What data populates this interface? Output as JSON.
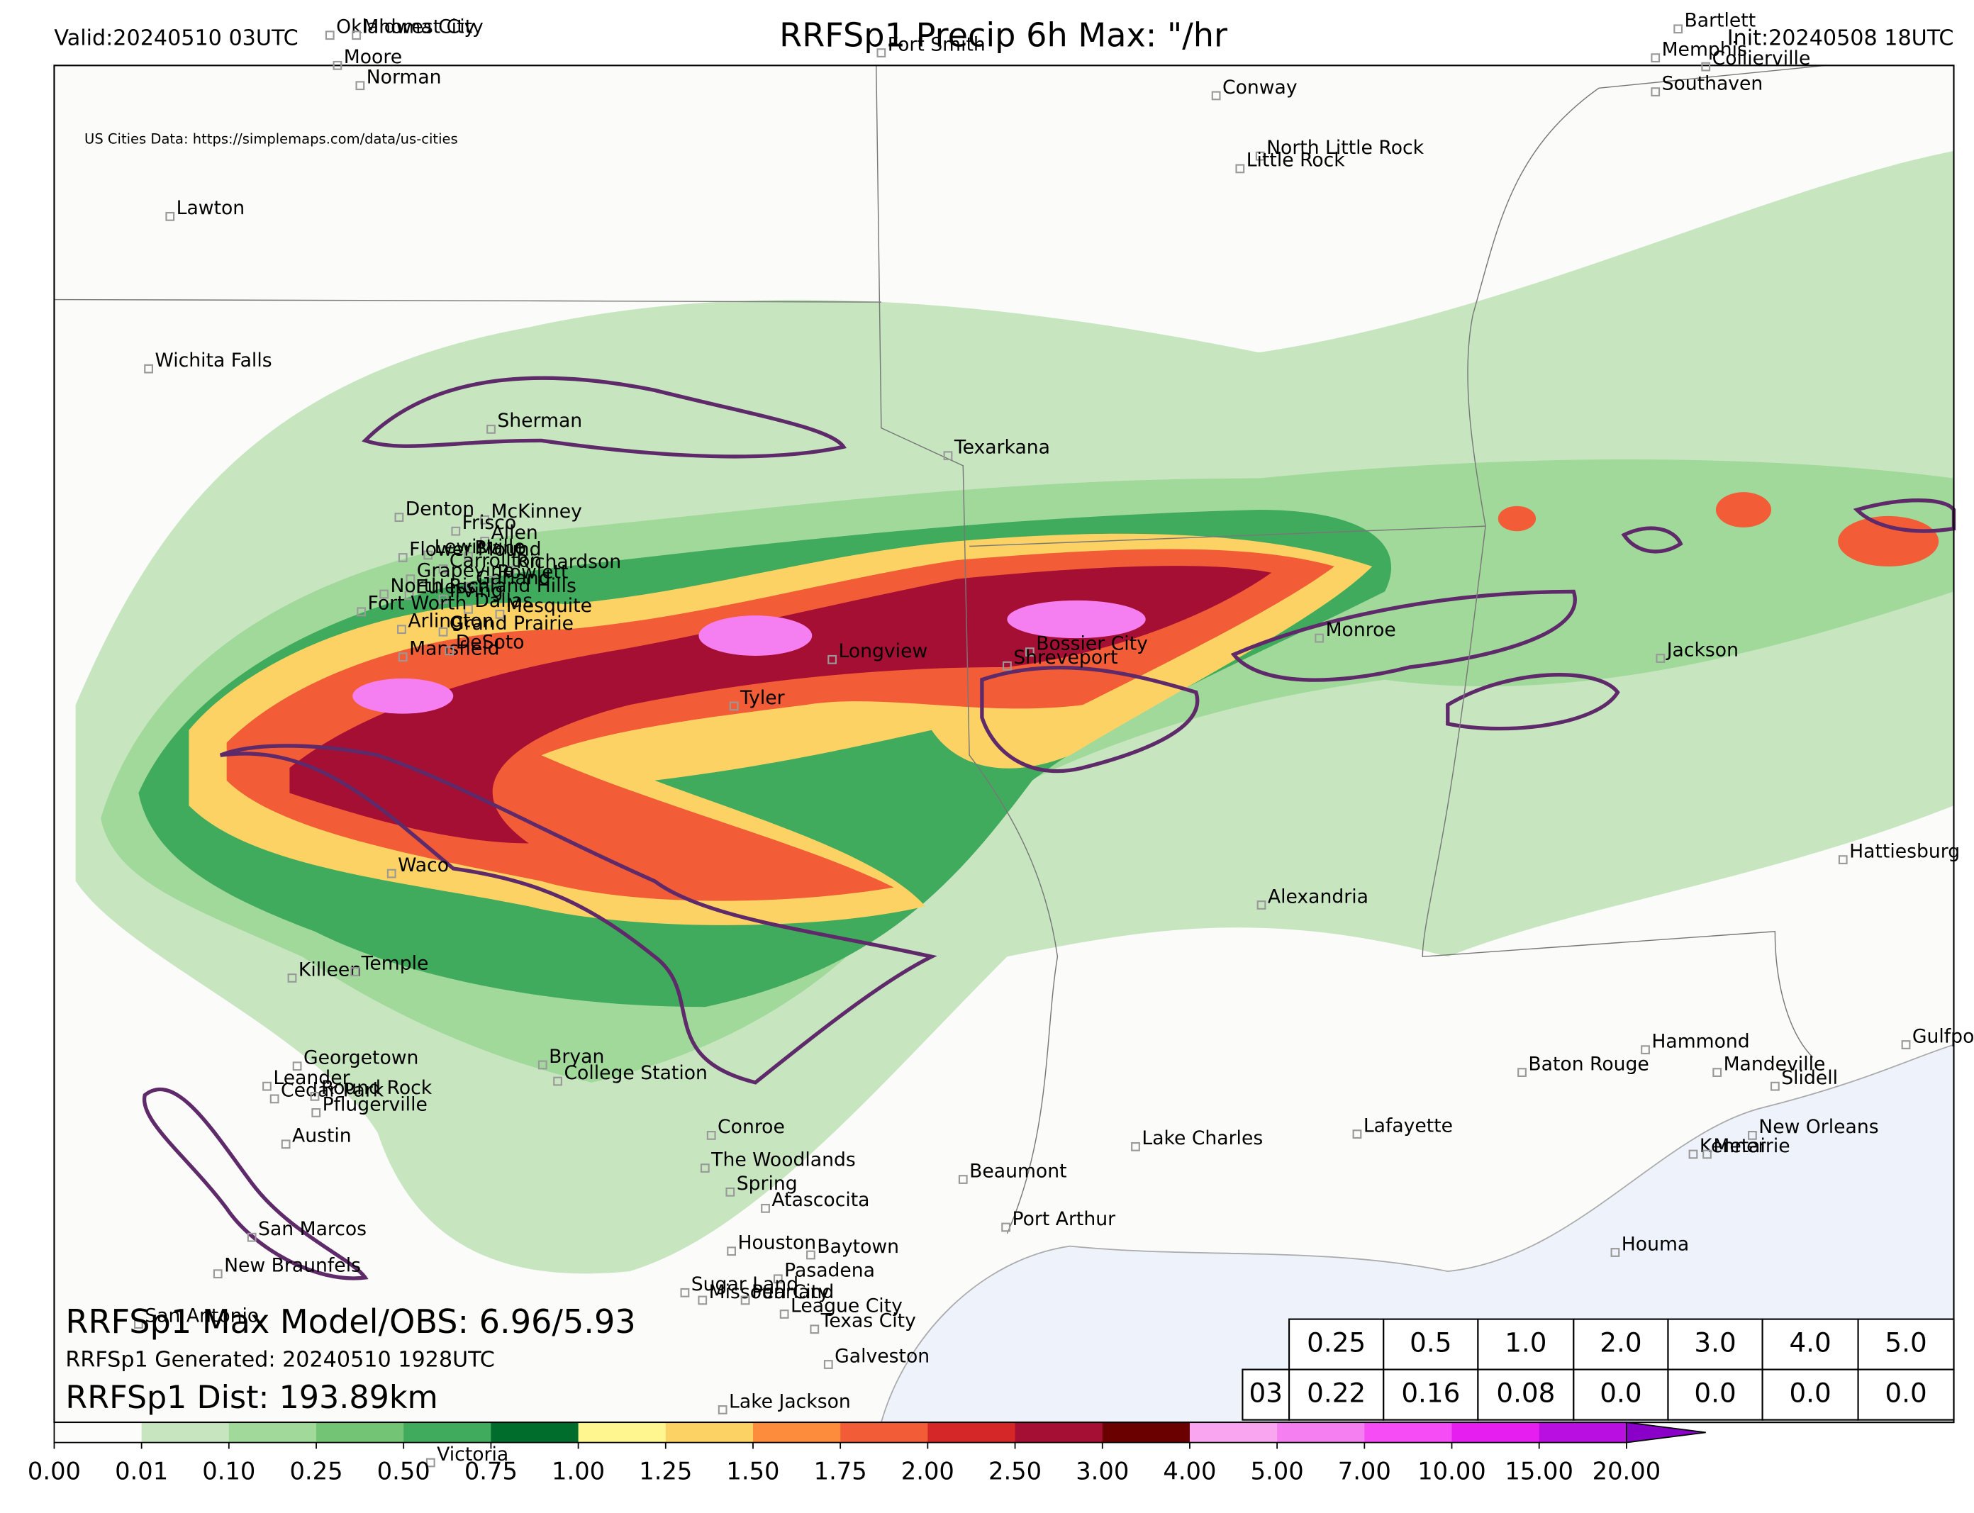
{
  "header": {
    "title": "RRFSp1 Precip 6h Max: \"/hr",
    "valid": "Valid:20240510 03UTC",
    "init": "Init:20240508 18UTC",
    "source": "US Cities Data: https://simplemaps.com/data/us-cities"
  },
  "cities": [
    "Oklahoma City",
    "Midwest City",
    "Moore",
    "Norman",
    "Fort Smith",
    "Bartlett",
    "Memphis",
    "Collierville",
    "Southaven",
    "Conway",
    "North Little Rock",
    "Little Rock",
    "Lawton",
    "Wichita Falls",
    "Sherman",
    "Texarkana",
    "Denton",
    "McKinney",
    "Frisco",
    "Allen",
    "Lewisville",
    "Plano",
    "Flower Mound",
    "Carrollton",
    "Richardson",
    "Grapevine",
    "Rowlett",
    "Garland",
    "Euless",
    "North Richland Hills",
    "Irving",
    "Dallas",
    "Mesquite",
    "Fort Worth",
    "Arlington",
    "Grand Prairie",
    "Mansfield",
    "DeSoto",
    "Longview",
    "Bossier City",
    "Shreveport",
    "Monroe",
    "Jackson",
    "Tyler",
    "Waco",
    "Alexandria",
    "Hattiesburg",
    "Killeen",
    "Temple",
    "Georgetown",
    "Bryan",
    "College Station",
    "Leander",
    "Cedar Park",
    "Round Rock",
    "Pflugerville",
    "Hammond",
    "Gulfport",
    "Baton Rouge",
    "Mandeville",
    "Slidell",
    "Conroe",
    "Lafayette",
    "Austin",
    "Lake Charles",
    "New Orleans",
    "Kenner",
    "Metairie",
    "The Woodlands",
    "Beaumont",
    "Spring",
    "Atascocita",
    "Port Arthur",
    "San Marcos",
    "Houston",
    "Baytown",
    "Houma",
    "New Braunfels",
    "Pasadena",
    "Sugar Land",
    "Missouri City",
    "Pearland",
    "League City",
    "San Antonio",
    "Texas City",
    "Galveston",
    "Lake Jackson",
    "Victoria"
  ],
  "stats": {
    "max": "RRFSp1 Max Model/OBS: 6.96/5.93",
    "generated": "RRFSp1 Generated: 20240510 1928UTC",
    "dist": "RRFSp1 Dist: 193.89km"
  },
  "colorbar": {
    "ticks": [
      {
        "value": 0,
        "label": "0.00"
      },
      {
        "value": 0.01,
        "label": "0.01"
      },
      {
        "value": 0.1,
        "label": "0.10"
      },
      {
        "value": 0.25,
        "label": "0.25"
      },
      {
        "value": 0.5,
        "label": "0.50"
      },
      {
        "value": 0.75,
        "label": "0.75"
      },
      {
        "value": 1,
        "label": "1.00"
      },
      {
        "value": 1.25,
        "label": "1.25"
      },
      {
        "value": 1.5,
        "label": "1.50"
      },
      {
        "value": 1.75,
        "label": "1.75"
      },
      {
        "value": 2,
        "label": "2.00"
      },
      {
        "value": 2.5,
        "label": "2.50"
      },
      {
        "value": 3,
        "label": "3.00"
      },
      {
        "value": 4,
        "label": "4.00"
      },
      {
        "value": 5,
        "label": "5.00"
      },
      {
        "value": 7,
        "label": "7.00"
      },
      {
        "value": 10,
        "label": "10.00"
      },
      {
        "value": 15,
        "label": "15.00"
      },
      {
        "value": 20,
        "label": "20.00"
      }
    ],
    "colors": [
      "#fcfcfb",
      "#c7e6c0",
      "#a1d99b",
      "#74c476",
      "#41ab5d",
      "#006d2c",
      "#fff68f",
      "#fdd264",
      "#fd8d3c",
      "#f25c37",
      "#d62728",
      "#a50f33",
      "#6b0000",
      "#f9a5f0",
      "#f57ff0",
      "#f54cf5",
      "#e71ef0",
      "#b90fe0",
      "#8a00c8"
    ]
  },
  "table": {
    "thresholds": [
      "0.25",
      "0.5",
      "1.0",
      "2.0",
      "3.0",
      "4.0",
      "5.0"
    ],
    "rows": [
      [
        "03",
        "0.22",
        "0.16",
        "0.08",
        "0.0",
        "0.0",
        "0.0",
        "0.0"
      ]
    ]
  }
}
